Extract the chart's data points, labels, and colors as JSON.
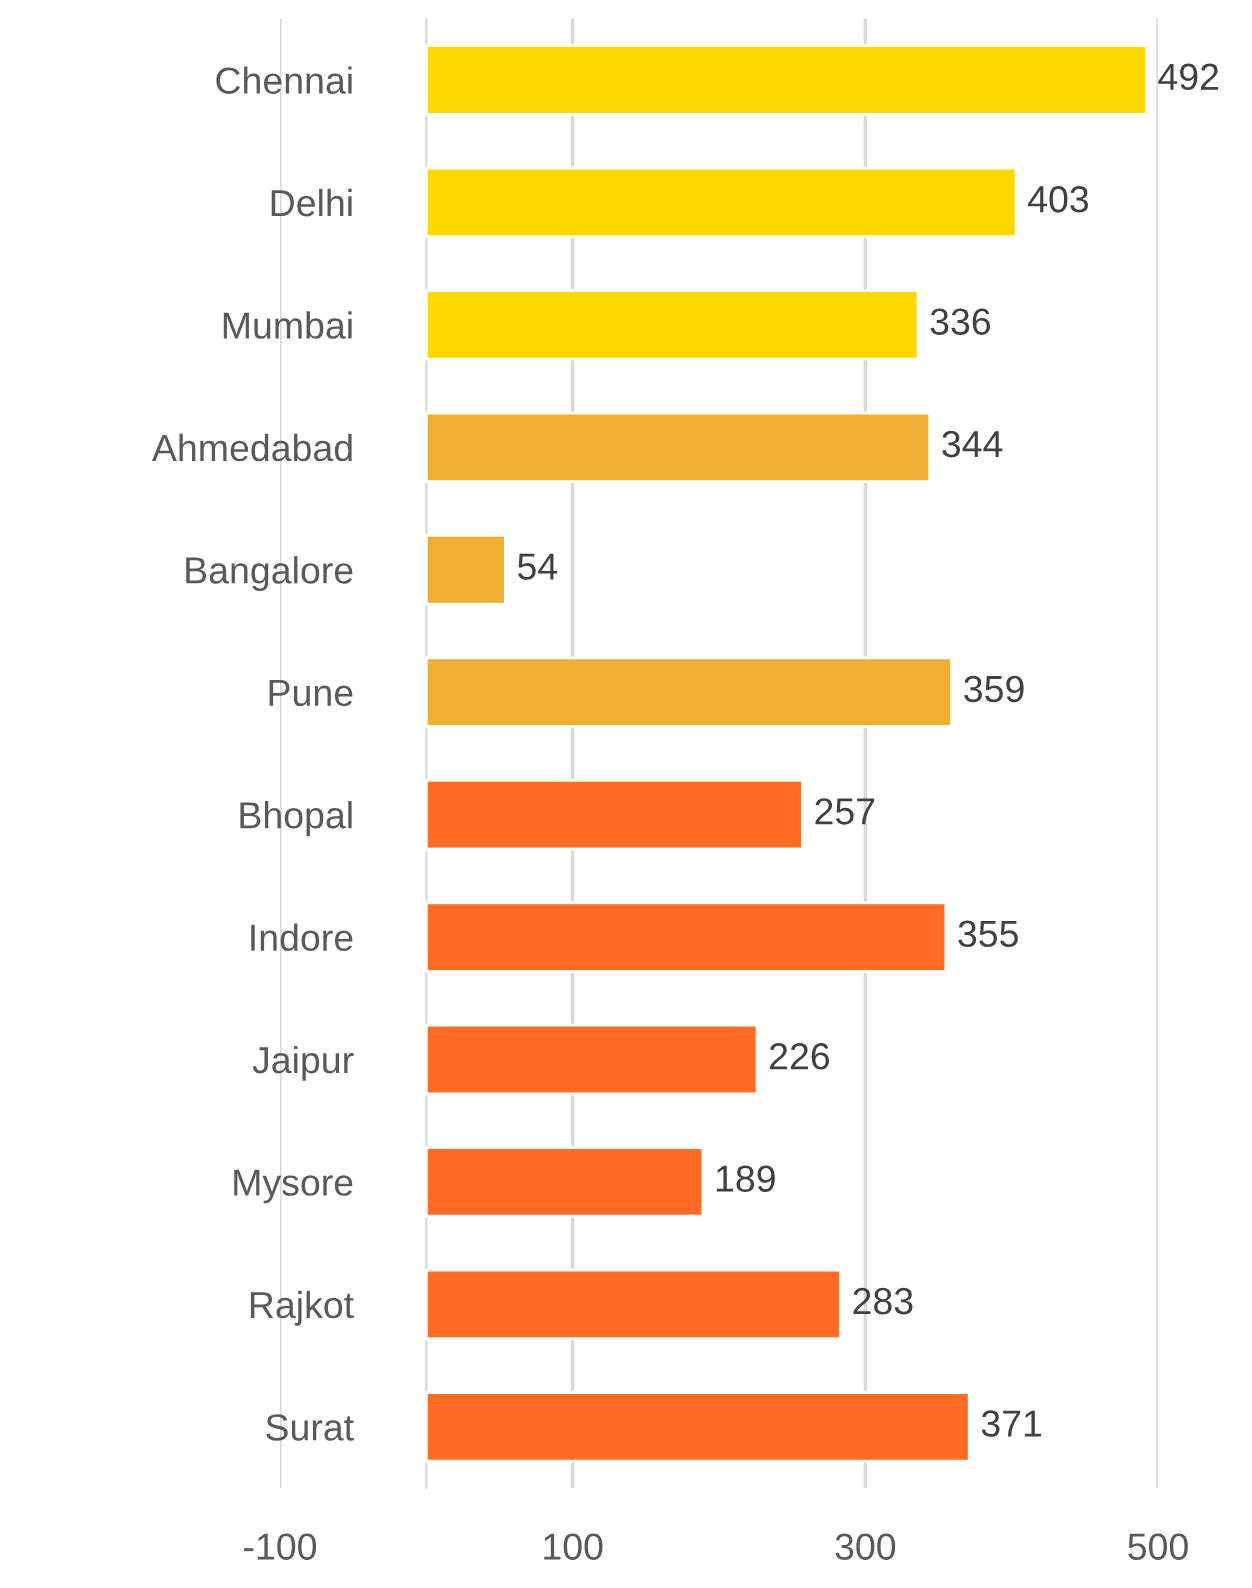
{
  "chart_data": {
    "type": "bar",
    "orientation": "horizontal",
    "categories": [
      "Chennai",
      "Delhi",
      "Mumbai",
      "Ahmedabad",
      "Bangalore",
      "Pune",
      "Bhopal",
      "Indore",
      "Jaipur",
      "Mysore",
      "Rajkot",
      "Surat"
    ],
    "values": [
      492,
      403,
      336,
      344,
      54,
      359,
      257,
      355,
      226,
      189,
      283,
      371
    ],
    "colors": [
      "#fcd700",
      "#fcd700",
      "#fcd700",
      "#edae32",
      "#edae32",
      "#edae32",
      "#ff6b22",
      "#ff6b22",
      "#ff6b22",
      "#ff6b22",
      "#ff6b22",
      "#ff6b22"
    ],
    "xlim": [
      -100,
      500
    ],
    "xticks": [
      -100,
      100,
      300,
      500
    ],
    "grid": "x",
    "data_labels": true
  }
}
